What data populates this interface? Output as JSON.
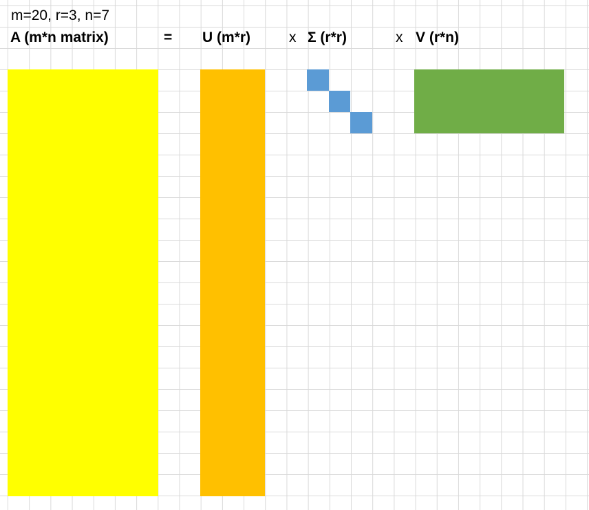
{
  "params": "m=20, r=3, n=7",
  "labels": {
    "a": "A (m*n matrix)",
    "eq": "=",
    "u": "U (m*r)",
    "x1": "x",
    "sigma": "Σ (r*r)",
    "x2": "x",
    "v": "V (r*n)"
  },
  "colors": {
    "a": "#ffff00",
    "u": "#ffc000",
    "sigma": "#5b9bd5",
    "v": "#70ad47",
    "grid": "#d9d9d9"
  }
}
